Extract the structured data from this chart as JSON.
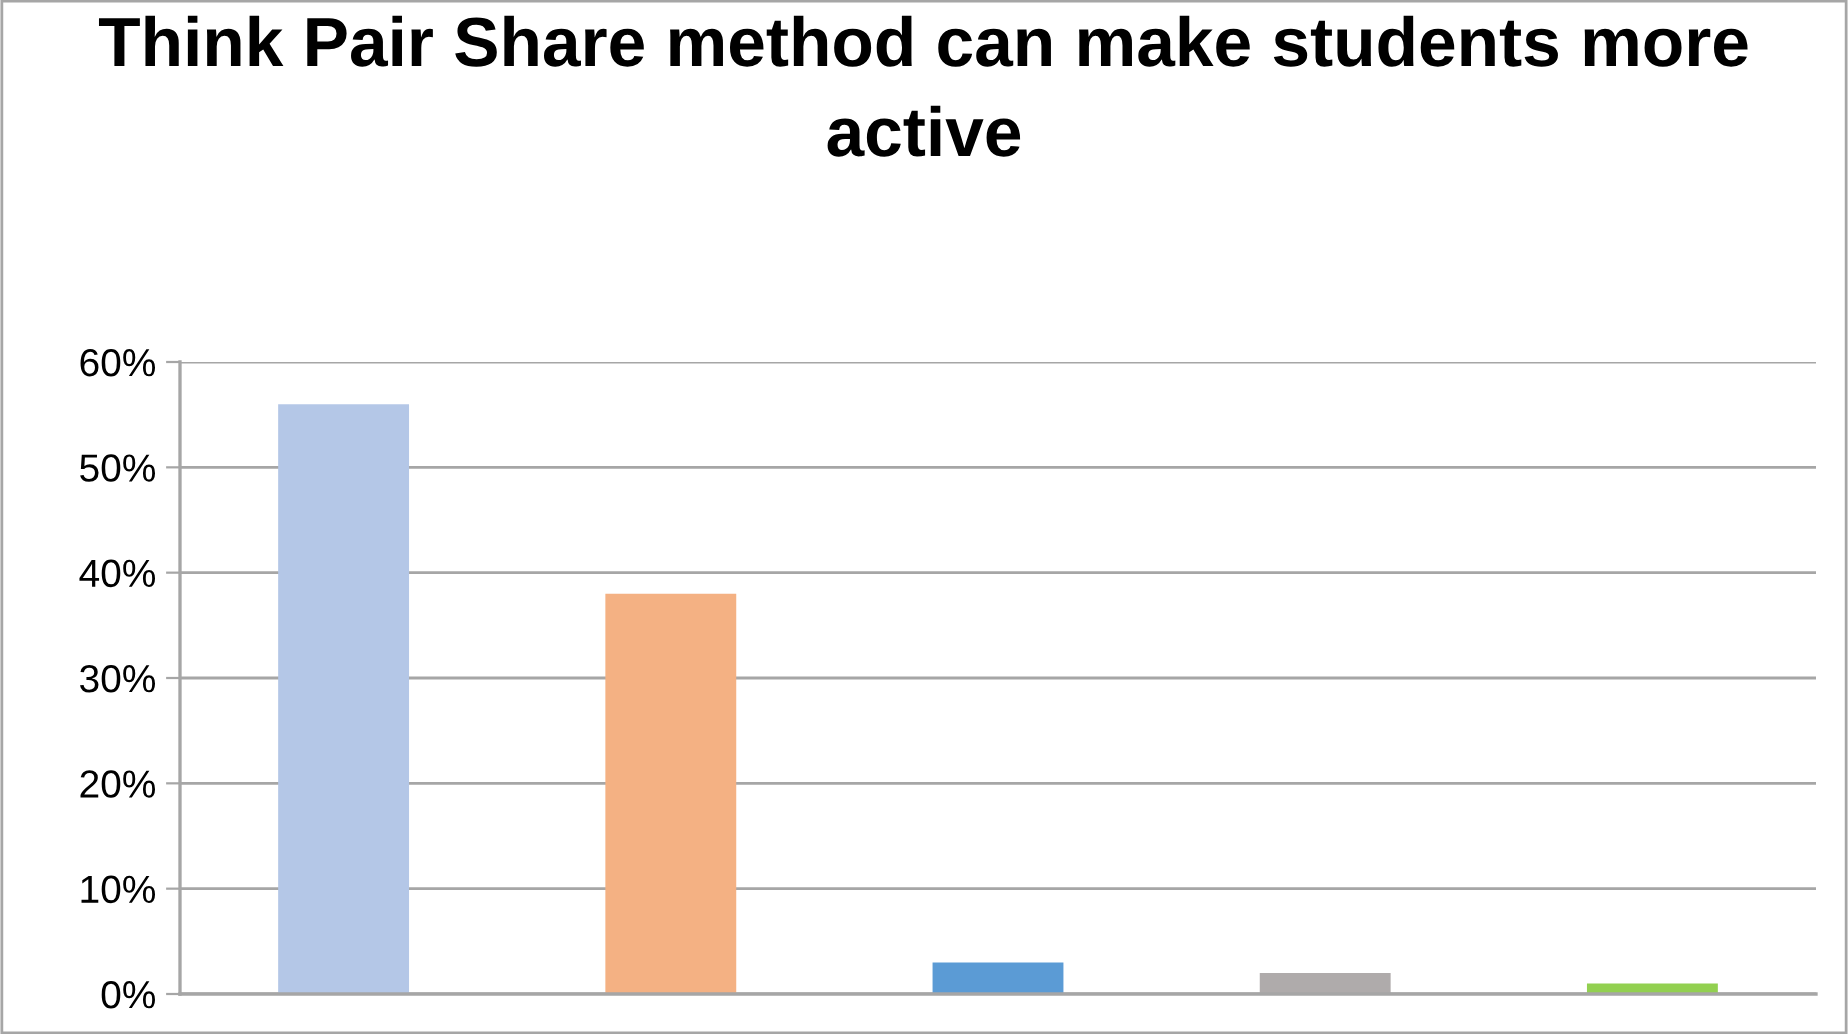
{
  "chart_data": {
    "type": "bar",
    "title": "Think Pair Share method can make students more active",
    "categories": [
      null,
      null,
      null,
      null,
      null
    ],
    "values": [
      56,
      38,
      3,
      2,
      1
    ],
    "colors": [
      "#b4c7e7",
      "#f4b183",
      "#5b9bd5",
      "#afabab",
      "#92d050"
    ],
    "ylim": [
      0,
      60
    ],
    "yticks": [
      {
        "value": 0,
        "label": "0%"
      },
      {
        "value": 10,
        "label": "10%"
      },
      {
        "value": 20,
        "label": "20%"
      },
      {
        "value": 30,
        "label": "30%"
      },
      {
        "value": 40,
        "label": "40%"
      },
      {
        "value": 50,
        "label": "50%"
      },
      {
        "value": 60,
        "label": "60%"
      }
    ],
    "grid": "y",
    "legend": false
  }
}
